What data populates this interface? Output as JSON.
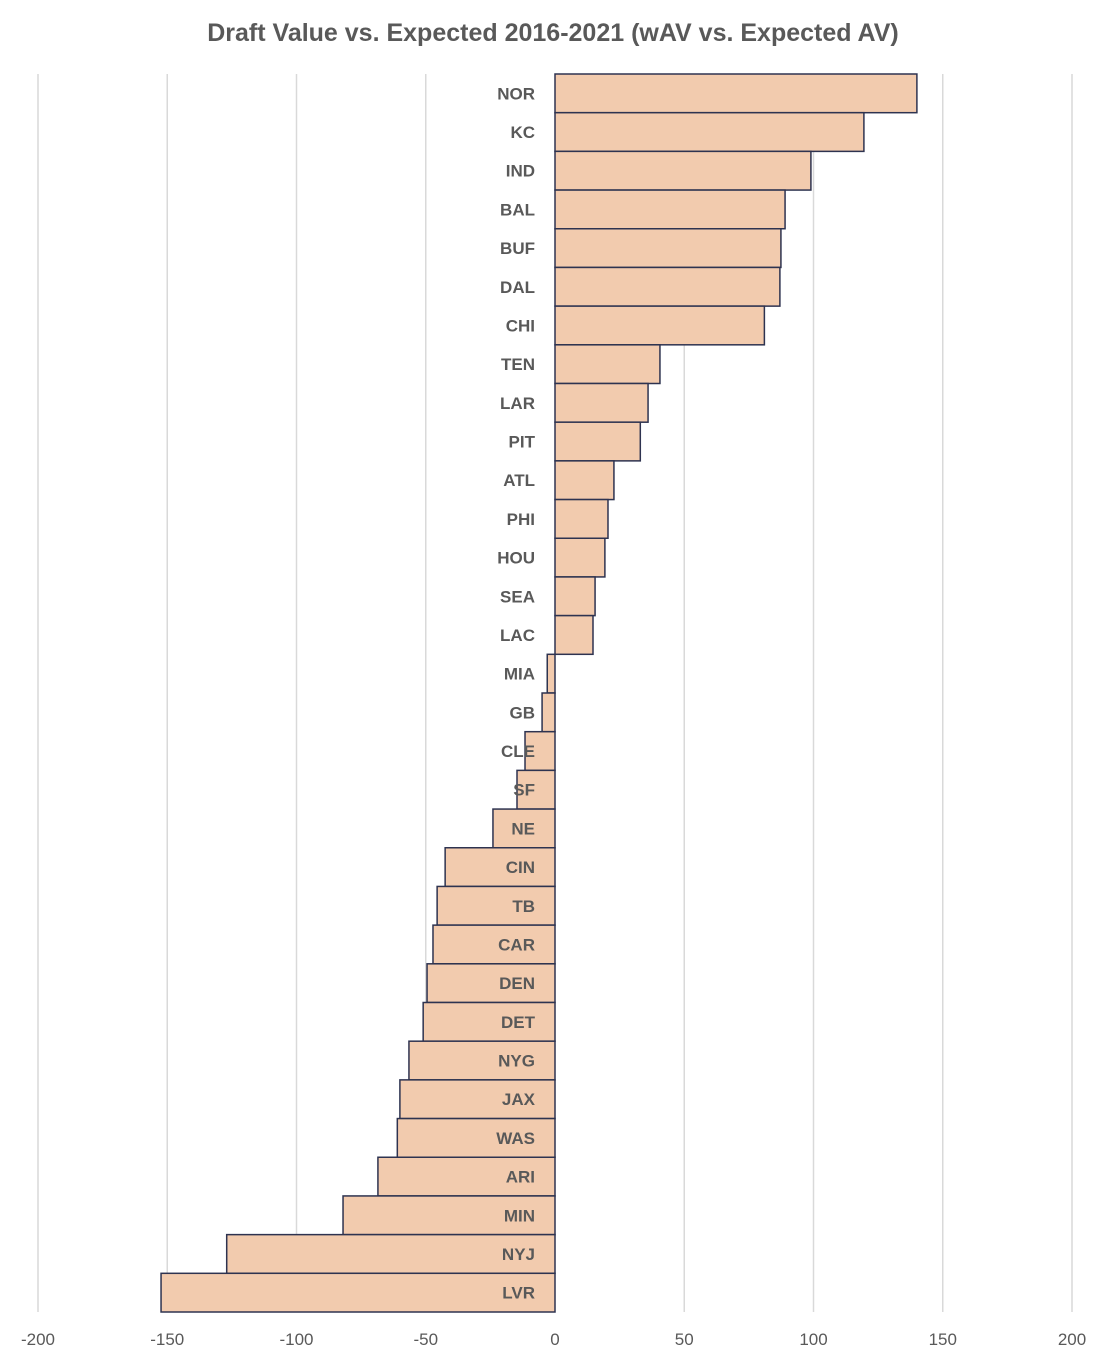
{
  "chart_data": {
    "type": "bar",
    "orientation": "horizontal",
    "title": "Draft Value vs. Expected 2016-2021 (wAV vs. Expected AV)",
    "xlabel": "",
    "ylabel": "",
    "xlim": [
      -200,
      200
    ],
    "xticks": [
      -200,
      -150,
      -100,
      -50,
      0,
      50,
      100,
      150,
      200
    ],
    "xtick_labels": [
      "-200",
      "-150",
      "-100",
      "-50",
      "0",
      "50",
      "100",
      "150",
      "200"
    ],
    "grid": "vertical",
    "legend": "none",
    "colors": {
      "bar_fill": "#F2CBAE",
      "bar_stroke": "#2E3350",
      "grid": "#D9D9D9",
      "text": "#595959"
    },
    "categories": [
      "NOR",
      "KC",
      "IND",
      "BAL",
      "BUF",
      "DAL",
      "CHI",
      "TEN",
      "LAR",
      "PIT",
      "ATL",
      "PHI",
      "HOU",
      "SEA",
      "LAC",
      "MIA",
      "GB",
      "CLE",
      "SF",
      "NE",
      "CIN",
      "TB",
      "CAR",
      "DEN",
      "DET",
      "NYG",
      "JAX",
      "WAS",
      "ARI",
      "MIN",
      "NYJ",
      "LVR"
    ],
    "values": [
      140,
      119.5,
      99,
      89,
      87.4,
      87,
      81,
      40.6,
      36,
      33,
      22.8,
      20.5,
      19.3,
      15.5,
      14.7,
      -3,
      -5,
      -11.6,
      -14.7,
      -24,
      -42.5,
      -45.6,
      -47.2,
      -49.5,
      -51,
      -56.5,
      -60,
      -61,
      -68.5,
      -82,
      -127,
      -152.4
    ]
  }
}
